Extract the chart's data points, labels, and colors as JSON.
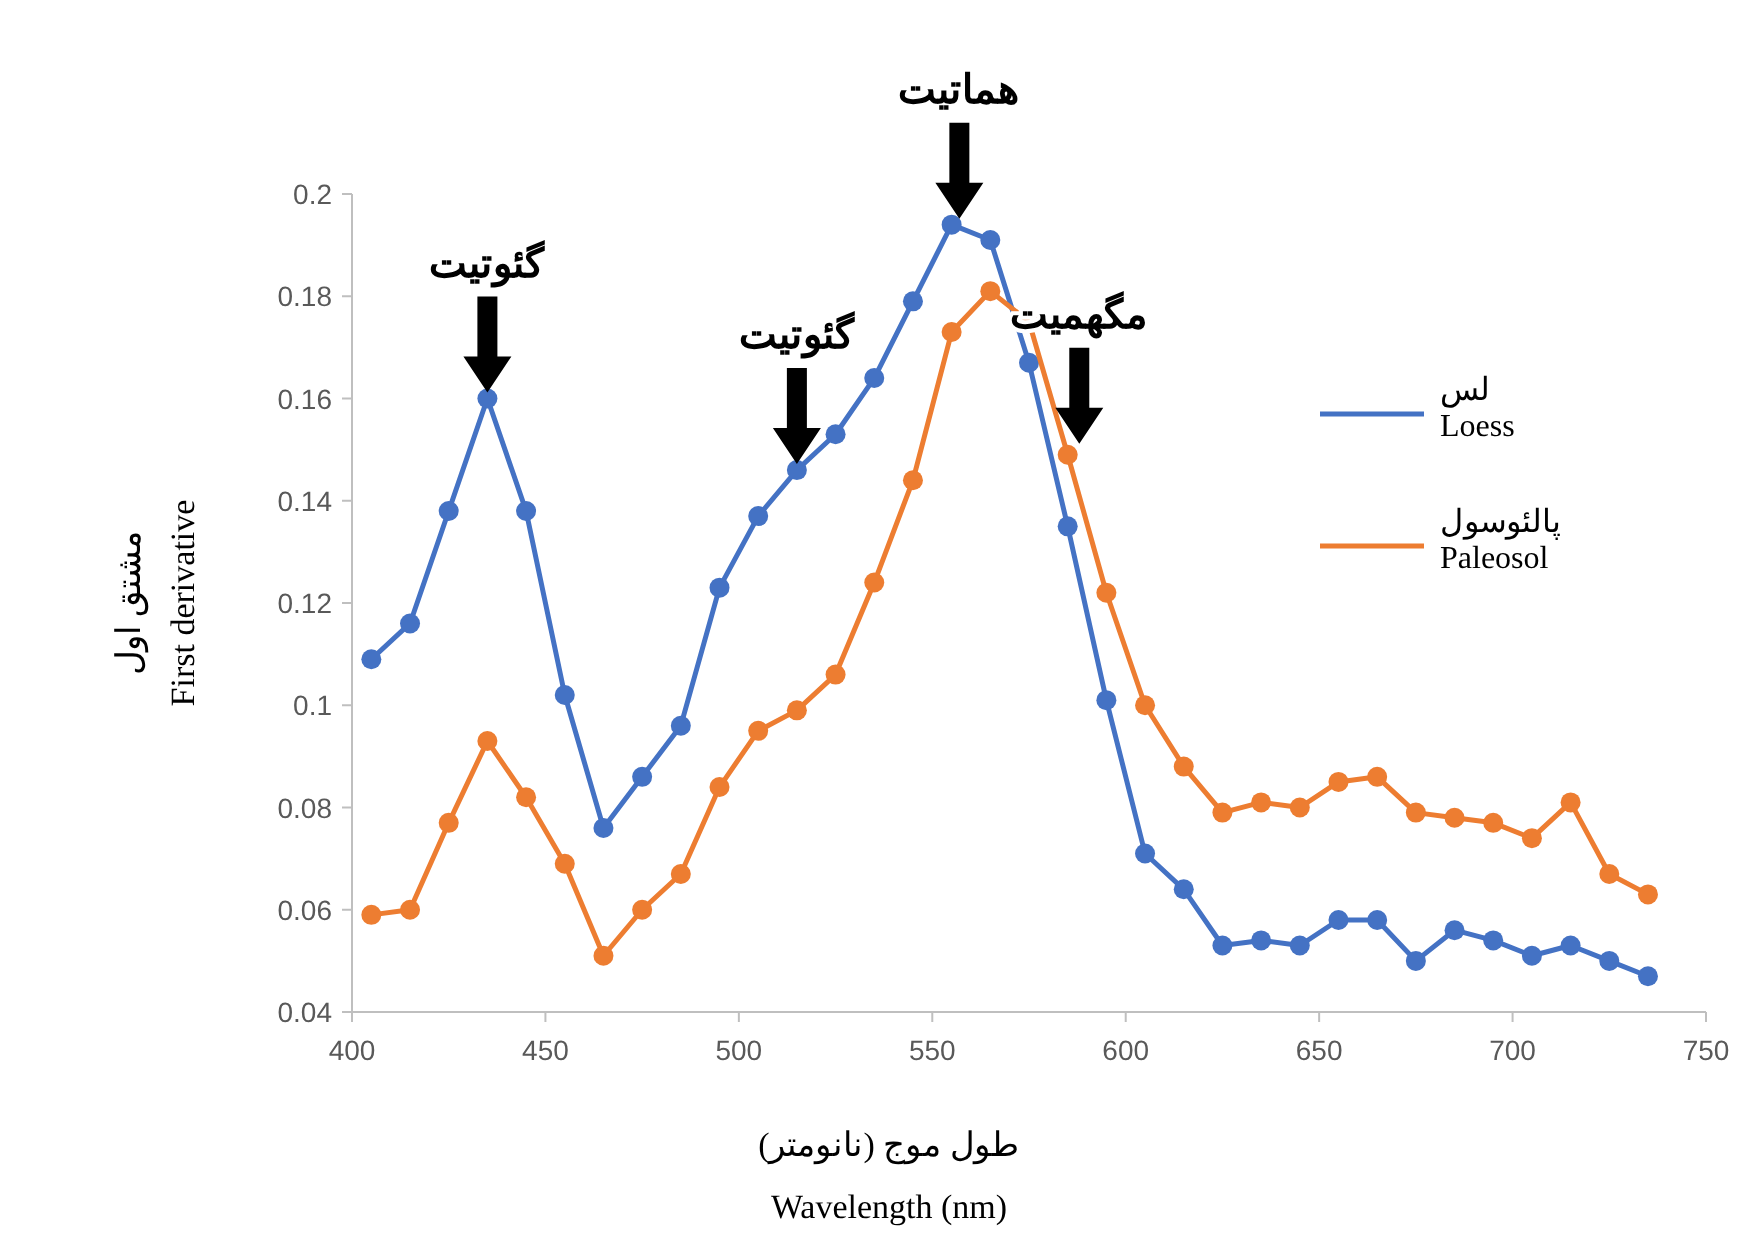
{
  "chart_data": {
    "type": "line",
    "xlabel": "طول موج (نانومتر)\nWavelength (nm)",
    "ylabel": "مشتق اول\nFirst derivative",
    "x": [
      405,
      415,
      425,
      435,
      445,
      455,
      465,
      475,
      485,
      495,
      505,
      515,
      525,
      535,
      545,
      555,
      565,
      575,
      585,
      595,
      605,
      615,
      625,
      635,
      645,
      655,
      665,
      675,
      685,
      695,
      705,
      715,
      725,
      735
    ],
    "series": [
      {
        "name": "لس\nLoess",
        "color": "#4472c4",
        "values": [
          0.109,
          0.116,
          0.138,
          0.16,
          0.138,
          0.102,
          0.076,
          0.086,
          0.096,
          0.123,
          0.137,
          0.146,
          0.153,
          0.164,
          0.179,
          0.194,
          0.191,
          0.167,
          0.135,
          0.101,
          0.071,
          0.064,
          0.053,
          0.054,
          0.053,
          0.058,
          0.058,
          0.05,
          0.056,
          0.054,
          0.051,
          0.053,
          0.05,
          0.047
        ]
      },
      {
        "name": "پالئوسول\nPaleosol",
        "color": "#ed7d31",
        "values": [
          0.059,
          0.06,
          0.077,
          0.093,
          0.082,
          0.069,
          0.051,
          0.06,
          0.067,
          0.084,
          0.095,
          0.099,
          0.106,
          0.124,
          0.144,
          0.173,
          0.181,
          0.175,
          0.149,
          0.122,
          0.1,
          0.088,
          0.079,
          0.081,
          0.08,
          0.085,
          0.086,
          0.079,
          0.078,
          0.077,
          0.074,
          0.081,
          0.067,
          0.063
        ]
      }
    ],
    "xlim": [
      400,
      750
    ],
    "xticks": [
      400,
      450,
      500,
      550,
      600,
      650,
      700,
      750
    ],
    "ylim": [
      0.04,
      0.2
    ],
    "yticks": [
      0.04,
      0.06,
      0.08,
      0.1,
      0.12,
      0.14,
      0.16,
      0.18,
      0.2
    ],
    "annotations": [
      {
        "text": "گئوتیت",
        "x": 435,
        "y": 0.16
      },
      {
        "text": "گئوتیت",
        "x": 515,
        "y": 0.146
      },
      {
        "text": "هماتیت",
        "x": 557,
        "y": 0.194
      },
      {
        "text": "مگهمیت",
        "x": 588,
        "y": 0.15
      }
    ],
    "grid": false,
    "legend": "right",
    "marker": "circle",
    "line_style": "solid"
  }
}
